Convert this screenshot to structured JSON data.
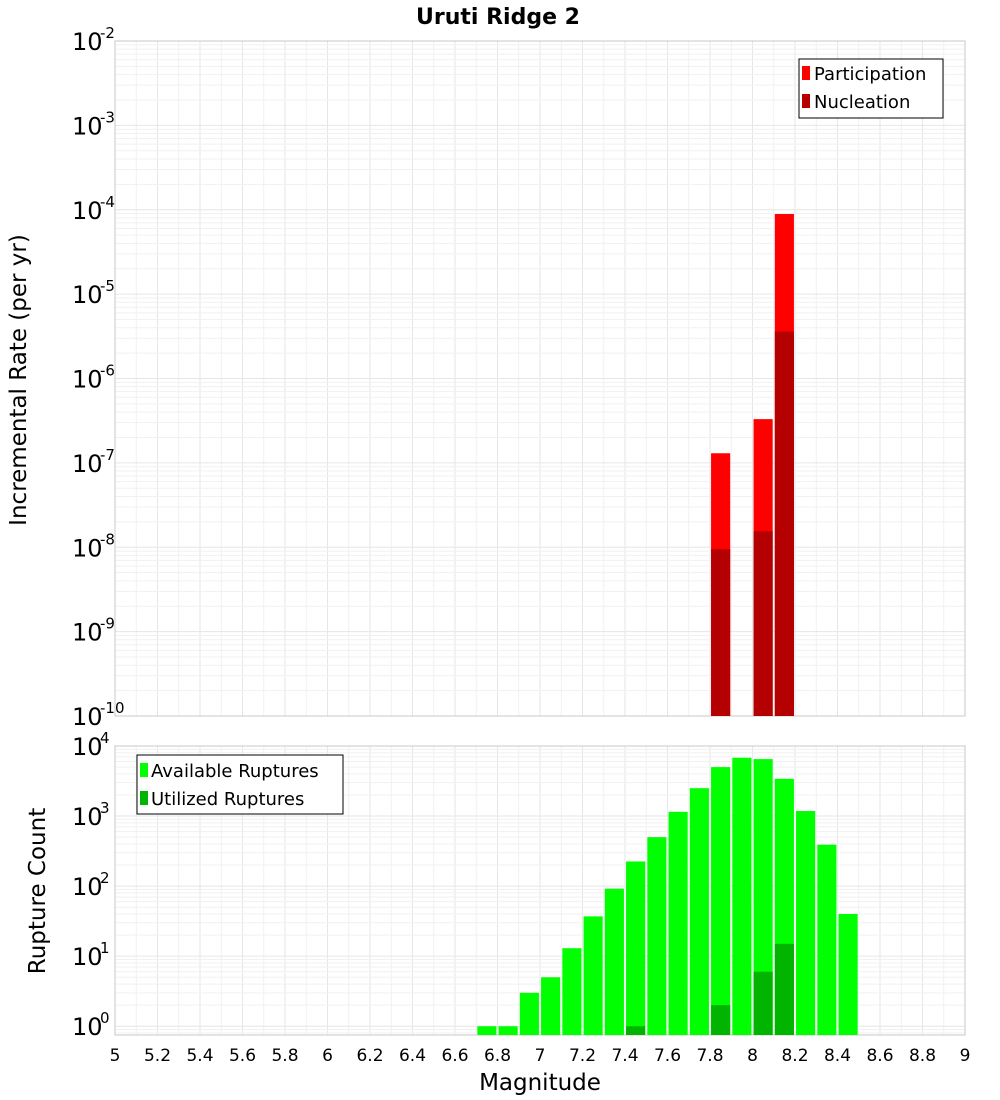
{
  "chart_data": [
    {
      "type": "bar",
      "title": "Uruti Ridge 2",
      "ylabel": "Incremental Rate (per yr)",
      "yscale": "log",
      "ylim": [
        1e-10,
        0.01
      ],
      "xlim": [
        5,
        9
      ],
      "bar_width": 0.09,
      "ytick_labels": [
        {
          "base": "10",
          "exp": "-10",
          "value": 1e-10
        },
        {
          "base": "10",
          "exp": "-9",
          "value": 1e-09
        },
        {
          "base": "10",
          "exp": "-8",
          "value": 1e-08
        },
        {
          "base": "10",
          "exp": "-7",
          "value": 1e-07
        },
        {
          "base": "10",
          "exp": "-6",
          "value": 1e-06
        },
        {
          "base": "10",
          "exp": "-5",
          "value": 1e-05
        },
        {
          "base": "10",
          "exp": "-4",
          "value": 0.0001
        },
        {
          "base": "10",
          "exp": "-3",
          "value": 0.001
        },
        {
          "base": "10",
          "exp": "-2",
          "value": 0.01
        }
      ],
      "legend": {
        "position": "top-right",
        "entries": [
          {
            "name": "Participation",
            "color": "#ff0000"
          },
          {
            "name": "Nucleation",
            "color": "#b40000"
          }
        ]
      },
      "series": [
        {
          "name": "Participation",
          "color": "#ff0000",
          "x": [
            7.85,
            8.05,
            8.15
          ],
          "values": [
            1.3e-07,
            3.3e-07,
            8.9e-05
          ]
        },
        {
          "name": "Nucleation",
          "color": "#b40000",
          "x": [
            7.85,
            8.05,
            8.15
          ],
          "values": [
            9.5e-09,
            1.55e-08,
            3.6e-06
          ]
        }
      ]
    },
    {
      "type": "bar",
      "ylabel": "Rupture Count",
      "xlabel": "Magnitude",
      "yscale": "log",
      "ylim": [
        0.75,
        10000
      ],
      "xlim": [
        5,
        9
      ],
      "bar_width": 0.09,
      "ytick_labels": [
        {
          "base": "10",
          "exp": "0",
          "value": 1
        },
        {
          "base": "10",
          "exp": "1",
          "value": 10
        },
        {
          "base": "10",
          "exp": "2",
          "value": 100
        },
        {
          "base": "10",
          "exp": "3",
          "value": 1000
        },
        {
          "base": "10",
          "exp": "4",
          "value": 10000
        }
      ],
      "xtick_labels": [
        "5",
        "5.2",
        "5.4",
        "5.6",
        "5.8",
        "6",
        "6.2",
        "6.4",
        "6.6",
        "6.8",
        "7",
        "7.2",
        "7.4",
        "7.6",
        "7.8",
        "8",
        "8.2",
        "8.4",
        "8.6",
        "8.8",
        "9"
      ],
      "legend": {
        "position": "top-left",
        "entries": [
          {
            "name": "Available Ruptures",
            "color": "#00ff00"
          },
          {
            "name": "Utilized Ruptures",
            "color": "#00b400"
          }
        ]
      },
      "series": [
        {
          "name": "Available Ruptures",
          "color": "#00ff00",
          "x": [
            6.75,
            6.85,
            6.95,
            7.05,
            7.15,
            7.25,
            7.35,
            7.45,
            7.55,
            7.65,
            7.75,
            7.85,
            7.95,
            8.05,
            8.15,
            8.25,
            8.35,
            8.45
          ],
          "values": [
            1,
            1,
            3,
            5,
            13,
            37,
            92,
            225,
            500,
            1150,
            2500,
            5000,
            6800,
            6500,
            3400,
            1180,
            390,
            40
          ]
        },
        {
          "name": "Utilized Ruptures",
          "color": "#00b400",
          "x": [
            7.45,
            7.85,
            8.05,
            8.15
          ],
          "values": [
            1,
            2,
            6,
            15
          ]
        }
      ]
    }
  ]
}
